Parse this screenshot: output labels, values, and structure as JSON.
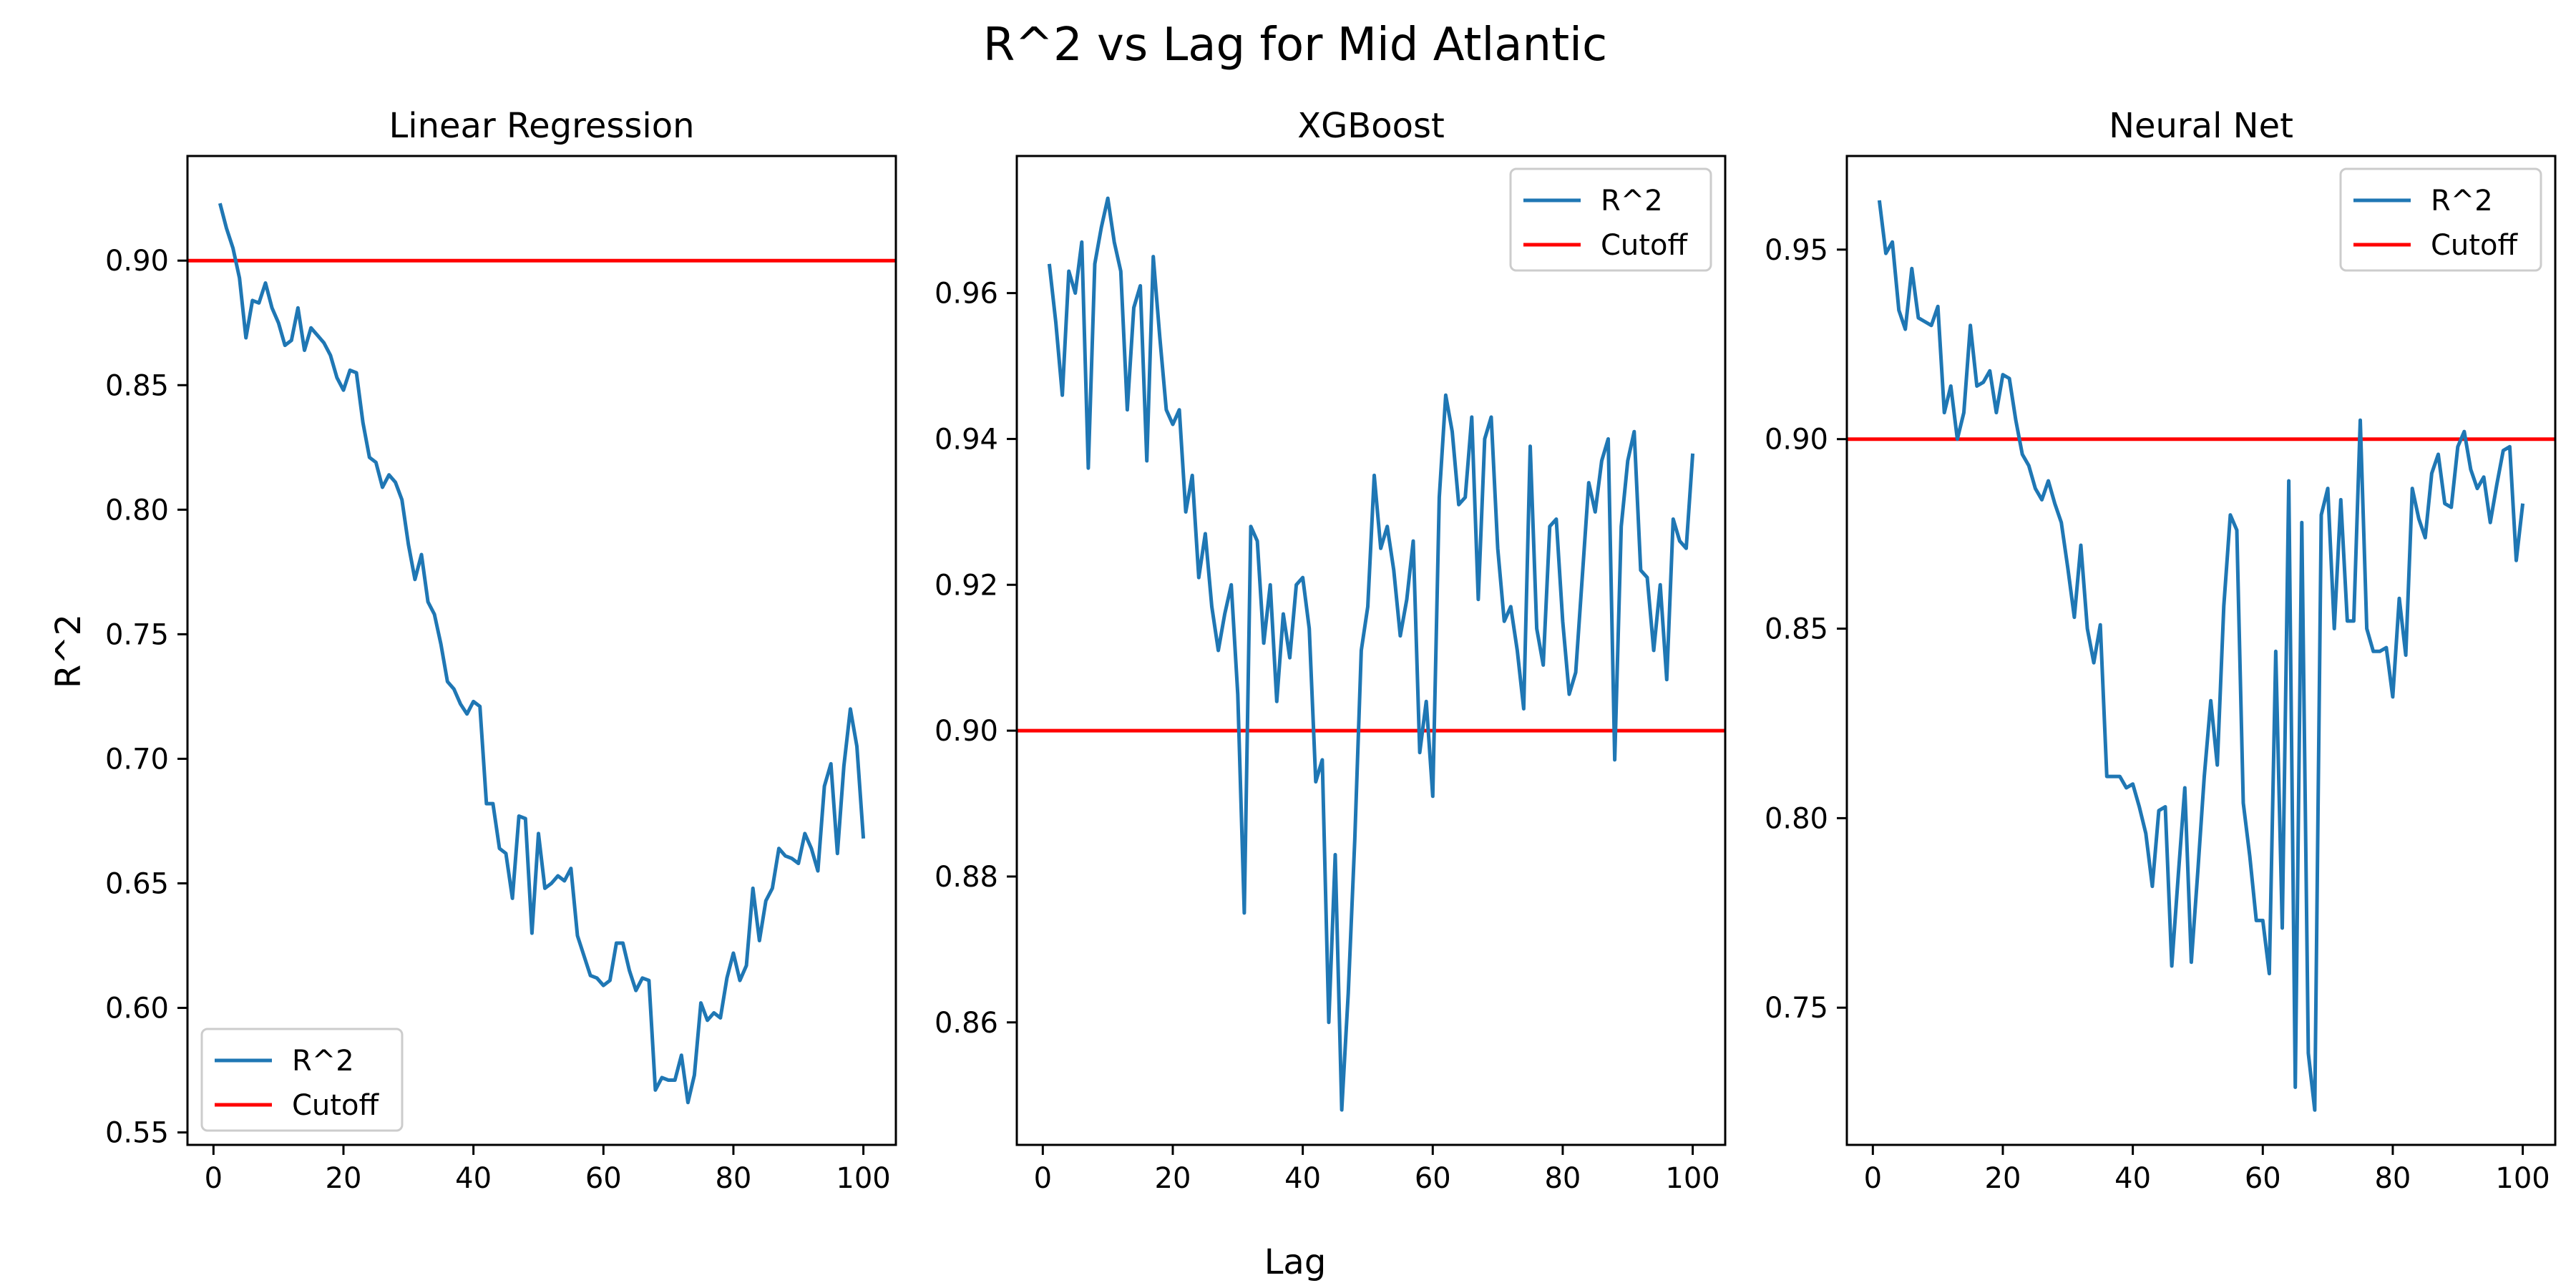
{
  "figure": {
    "suptitle": "R^2 vs Lag for Mid Atlantic",
    "xlabel": "Lag",
    "ylabel": "R^2"
  },
  "colors": {
    "series": "#1f77b4",
    "cutoff": "#ff0000"
  },
  "chart_data": [
    {
      "type": "line",
      "title": "Linear Regression",
      "xlabel": "Lag",
      "ylabel": "R^2",
      "xlim": [
        -4,
        105
      ],
      "ylim": [
        0.545,
        0.942
      ],
      "xticks": [
        0,
        20,
        40,
        60,
        80,
        100
      ],
      "yticks": [
        0.55,
        0.6,
        0.65,
        0.7,
        0.75,
        0.8,
        0.85,
        0.9
      ],
      "ytick_labels": [
        "0.55",
        "0.60",
        "0.65",
        "0.70",
        "0.75",
        "0.80",
        "0.85",
        "0.90"
      ],
      "cutoff": 0.9,
      "legend_position": "lower-left",
      "legend": [
        "R^2",
        "Cutoff"
      ],
      "x": [
        1,
        2,
        3,
        4,
        5,
        6,
        7,
        8,
        9,
        10,
        11,
        12,
        13,
        14,
        15,
        16,
        17,
        18,
        19,
        20,
        21,
        22,
        23,
        24,
        25,
        26,
        27,
        28,
        29,
        30,
        31,
        32,
        33,
        34,
        35,
        36,
        37,
        38,
        39,
        40,
        41,
        42,
        43,
        44,
        45,
        46,
        47,
        48,
        49,
        50,
        51,
        52,
        53,
        54,
        55,
        56,
        57,
        58,
        59,
        60,
        61,
        62,
        63,
        64,
        65,
        66,
        67,
        68,
        69,
        70,
        71,
        72,
        73,
        74,
        75,
        76,
        77,
        78,
        79,
        80,
        81,
        82,
        83,
        84,
        85,
        86,
        87,
        88,
        89,
        90,
        91,
        92,
        93,
        94,
        95,
        96,
        97,
        98,
        99,
        100
      ],
      "series": [
        {
          "name": "R^2",
          "values": [
            0.923,
            0.913,
            0.905,
            0.893,
            0.869,
            0.884,
            0.883,
            0.891,
            0.881,
            0.875,
            0.866,
            0.868,
            0.881,
            0.864,
            0.873,
            0.87,
            0.867,
            0.862,
            0.853,
            0.848,
            0.856,
            0.855,
            0.835,
            0.821,
            0.819,
            0.809,
            0.814,
            0.811,
            0.804,
            0.786,
            0.772,
            0.782,
            0.763,
            0.758,
            0.746,
            0.731,
            0.728,
            0.722,
            0.718,
            0.723,
            0.721,
            0.682,
            0.682,
            0.664,
            0.662,
            0.644,
            0.677,
            0.676,
            0.63,
            0.67,
            0.648,
            0.65,
            0.653,
            0.651,
            0.656,
            0.629,
            0.621,
            0.613,
            0.612,
            0.609,
            0.611,
            0.626,
            0.626,
            0.615,
            0.607,
            0.612,
            0.611,
            0.567,
            0.572,
            0.571,
            0.571,
            0.581,
            0.562,
            0.573,
            0.602,
            0.595,
            0.598,
            0.596,
            0.612,
            0.622,
            0.611,
            0.617,
            0.648,
            0.627,
            0.643,
            0.648,
            0.664,
            0.661,
            0.66,
            0.658,
            0.67,
            0.664,
            0.655,
            0.689,
            0.698,
            0.662,
            0.697,
            0.72,
            0.705,
            0.668
          ]
        }
      ]
    },
    {
      "type": "line",
      "title": "XGBoost",
      "xlabel": "Lag",
      "ylabel": "R^2",
      "xlim": [
        -4,
        105
      ],
      "ylim": [
        0.8432,
        0.9788
      ],
      "xticks": [
        0,
        20,
        40,
        60,
        80,
        100
      ],
      "yticks": [
        0.86,
        0.88,
        0.9,
        0.92,
        0.94,
        0.96
      ],
      "ytick_labels": [
        "0.86",
        "0.88",
        "0.90",
        "0.92",
        "0.94",
        "0.96"
      ],
      "cutoff": 0.9,
      "legend_position": "top-right",
      "legend": [
        "R^2",
        "Cutoff"
      ],
      "x": [
        1,
        2,
        3,
        4,
        5,
        6,
        7,
        8,
        9,
        10,
        11,
        12,
        13,
        14,
        15,
        16,
        17,
        18,
        19,
        20,
        21,
        22,
        23,
        24,
        25,
        26,
        27,
        28,
        29,
        30,
        31,
        32,
        33,
        34,
        35,
        36,
        37,
        38,
        39,
        40,
        41,
        42,
        43,
        44,
        45,
        46,
        47,
        48,
        49,
        50,
        51,
        52,
        53,
        54,
        55,
        56,
        57,
        58,
        59,
        60,
        61,
        62,
        63,
        64,
        65,
        66,
        67,
        68,
        69,
        70,
        71,
        72,
        73,
        74,
        75,
        76,
        77,
        78,
        79,
        80,
        81,
        82,
        83,
        84,
        85,
        86,
        87,
        88,
        89,
        90,
        91,
        92,
        93,
        94,
        95,
        96,
        97,
        98,
        99,
        100
      ],
      "series": [
        {
          "name": "R^2",
          "values": [
            0.964,
            0.956,
            0.946,
            0.963,
            0.96,
            0.967,
            0.936,
            0.964,
            0.969,
            0.973,
            0.967,
            0.963,
            0.944,
            0.958,
            0.961,
            0.937,
            0.965,
            0.954,
            0.944,
            0.942,
            0.944,
            0.93,
            0.935,
            0.921,
            0.927,
            0.917,
            0.911,
            0.916,
            0.92,
            0.905,
            0.875,
            0.928,
            0.926,
            0.912,
            0.92,
            0.904,
            0.916,
            0.91,
            0.92,
            0.921,
            0.914,
            0.893,
            0.896,
            0.86,
            0.883,
            0.848,
            0.864,
            0.885,
            0.911,
            0.917,
            0.935,
            0.925,
            0.928,
            0.922,
            0.913,
            0.918,
            0.926,
            0.897,
            0.904,
            0.891,
            0.932,
            0.946,
            0.941,
            0.931,
            0.932,
            0.943,
            0.918,
            0.94,
            0.943,
            0.925,
            0.915,
            0.917,
            0.911,
            0.903,
            0.939,
            0.914,
            0.909,
            0.928,
            0.929,
            0.915,
            0.905,
            0.908,
            0.921,
            0.934,
            0.93,
            0.937,
            0.94,
            0.896,
            0.928,
            0.937,
            0.941,
            0.922,
            0.921,
            0.911,
            0.92,
            0.907,
            0.929,
            0.926,
            0.925,
            0.938
          ]
        }
      ]
    },
    {
      "type": "line",
      "title": "Neural Net",
      "xlabel": "Lag",
      "ylabel": "R^2",
      "xlim": [
        -4,
        105
      ],
      "ylim": [
        0.7138,
        0.9747
      ],
      "xticks": [
        0,
        20,
        40,
        60,
        80,
        100
      ],
      "yticks": [
        0.75,
        0.8,
        0.85,
        0.9,
        0.95
      ],
      "ytick_labels": [
        "0.75",
        "0.80",
        "0.85",
        "0.90",
        "0.95"
      ],
      "cutoff": 0.9,
      "legend_position": "top-right",
      "legend": [
        "R^2",
        "Cutoff"
      ],
      "x": [
        1,
        2,
        3,
        4,
        5,
        6,
        7,
        8,
        9,
        10,
        11,
        12,
        13,
        14,
        15,
        16,
        17,
        18,
        19,
        20,
        21,
        22,
        23,
        24,
        25,
        26,
        27,
        28,
        29,
        30,
        31,
        32,
        33,
        34,
        35,
        36,
        37,
        38,
        39,
        40,
        41,
        42,
        43,
        44,
        45,
        46,
        47,
        48,
        49,
        50,
        51,
        52,
        53,
        54,
        55,
        56,
        57,
        58,
        59,
        60,
        61,
        62,
        63,
        64,
        65,
        66,
        67,
        68,
        69,
        70,
        71,
        72,
        73,
        74,
        75,
        76,
        77,
        78,
        79,
        80,
        81,
        82,
        83,
        84,
        85,
        86,
        87,
        88,
        89,
        90,
        91,
        92,
        93,
        94,
        95,
        96,
        97,
        98,
        99,
        100
      ],
      "series": [
        {
          "name": "R^2",
          "values": [
            0.963,
            0.949,
            0.952,
            0.934,
            0.929,
            0.945,
            0.932,
            0.931,
            0.93,
            0.935,
            0.907,
            0.914,
            0.9,
            0.907,
            0.93,
            0.914,
            0.915,
            0.918,
            0.907,
            0.917,
            0.916,
            0.905,
            0.896,
            0.893,
            0.887,
            0.884,
            0.889,
            0.883,
            0.878,
            0.866,
            0.853,
            0.872,
            0.85,
            0.841,
            0.851,
            0.811,
            0.811,
            0.811,
            0.808,
            0.809,
            0.803,
            0.796,
            0.782,
            0.802,
            0.803,
            0.761,
            0.785,
            0.808,
            0.762,
            0.786,
            0.811,
            0.831,
            0.814,
            0.856,
            0.88,
            0.876,
            0.804,
            0.79,
            0.773,
            0.773,
            0.759,
            0.844,
            0.771,
            0.889,
            0.729,
            0.878,
            0.738,
            0.723,
            0.88,
            0.887,
            0.85,
            0.884,
            0.852,
            0.852,
            0.905,
            0.85,
            0.844,
            0.844,
            0.845,
            0.832,
            0.858,
            0.843,
            0.887,
            0.879,
            0.874,
            0.891,
            0.896,
            0.883,
            0.882,
            0.898,
            0.902,
            0.892,
            0.887,
            0.89,
            0.878,
            0.888,
            0.897,
            0.898,
            0.868,
            0.883
          ]
        }
      ]
    }
  ]
}
